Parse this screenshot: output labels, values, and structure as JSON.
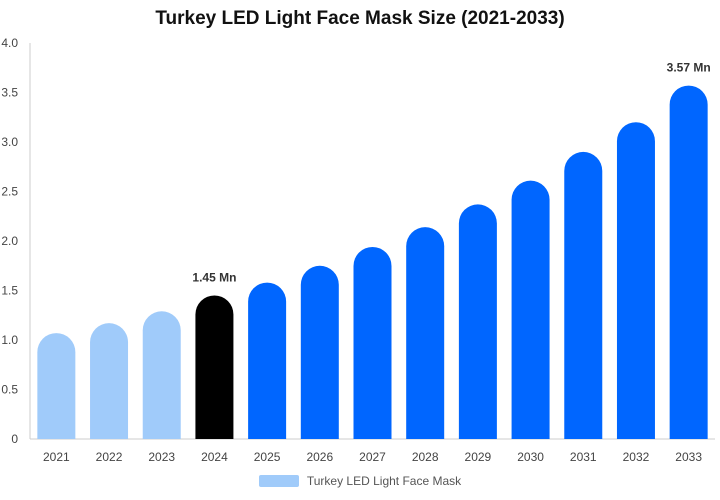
{
  "chart_data": {
    "type": "bar",
    "title": "Turkey LED Light Face Mask Size (2021-2033)",
    "categories": [
      "2021",
      "2022",
      "2023",
      "2024",
      "2025",
      "2026",
      "2027",
      "2028",
      "2029",
      "2030",
      "2031",
      "2032",
      "2033"
    ],
    "series": [
      {
        "name": "Turkey LED Light Face Mask",
        "values": [
          1.07,
          1.17,
          1.29,
          1.45,
          1.58,
          1.75,
          1.94,
          2.14,
          2.37,
          2.61,
          2.9,
          3.2,
          3.57
        ]
      }
    ],
    "bar_colors": [
      "#a0cbfa",
      "#a0cbfa",
      "#a0cbfa",
      "#000000",
      "#0066ff",
      "#0066ff",
      "#0066ff",
      "#0066ff",
      "#0066ff",
      "#0066ff",
      "#0066ff",
      "#0066ff",
      "#0066ff"
    ],
    "data_labels": [
      {
        "index": 3,
        "text": "1.45 Mn"
      },
      {
        "index": 12,
        "text": "3.57 Mn"
      }
    ],
    "yticks": [
      "0",
      "0.5",
      "1.0",
      "1.5",
      "2.0",
      "2.5",
      "3.0",
      "3.5",
      "4.0"
    ],
    "ylim": [
      0,
      4.0
    ],
    "xlabel": "",
    "ylabel": "",
    "grid": false,
    "legend_position": "bottom",
    "legend_color": "#a0cbfa"
  }
}
